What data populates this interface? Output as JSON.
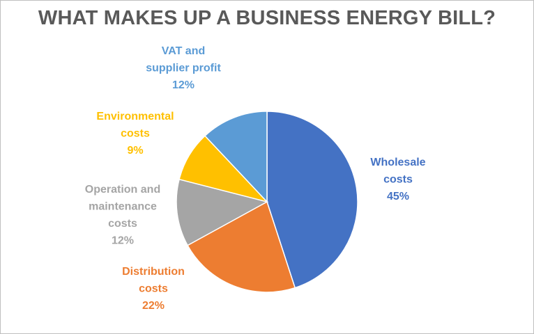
{
  "chart_data": {
    "type": "pie",
    "title": "WHAT MAKES UP A BUSINESS ENERGY BILL?",
    "start_angle_deg": 0,
    "direction": "clockwise",
    "slices": [
      {
        "key": "wholesale",
        "lines": [
          "Wholesale",
          "costs"
        ],
        "value": 45,
        "value_label": "45%",
        "color": "#4472C4"
      },
      {
        "key": "distribution",
        "lines": [
          "Distribution",
          "costs"
        ],
        "value": 22,
        "value_label": "22%",
        "color": "#ED7D31"
      },
      {
        "key": "operation-maintenance",
        "lines": [
          "Operation and",
          "maintenance",
          "costs"
        ],
        "value": 12,
        "value_label": "12%",
        "color": "#A5A5A5"
      },
      {
        "key": "environmental",
        "lines": [
          "Environmental",
          "costs"
        ],
        "value": 9,
        "value_label": "9%",
        "color": "#FFC000"
      },
      {
        "key": "vat-supplier-profit",
        "lines": [
          "VAT and",
          "supplier profit"
        ],
        "value": 12,
        "value_label": "12%",
        "color": "#5B9BD5"
      }
    ]
  }
}
